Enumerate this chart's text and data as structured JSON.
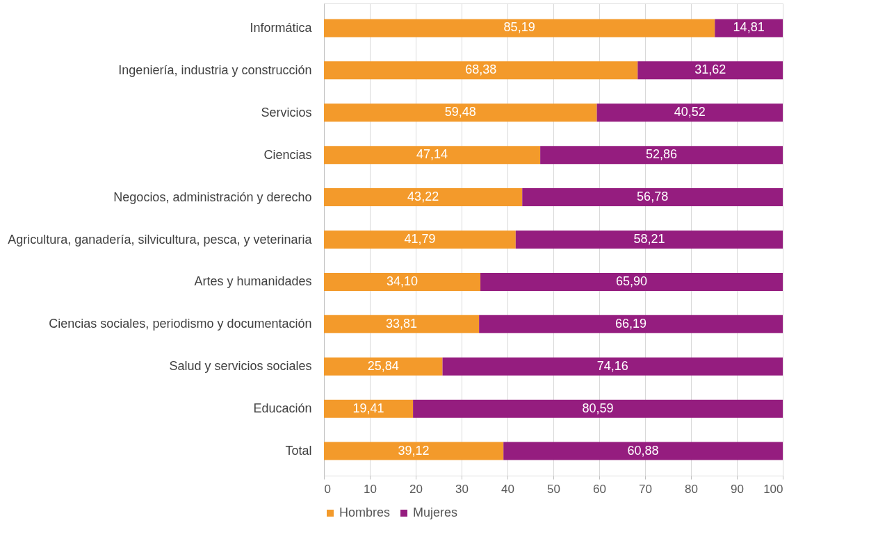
{
  "chart_data": {
    "type": "bar",
    "orientation": "horizontal",
    "stacked": true,
    "categories": [
      "Informática",
      "Ingeniería, industria y construcción",
      "Servicios",
      "Ciencias",
      "Negocios, administración y derecho",
      "Agricultura, ganadería,  silvicultura, pesca, y veterinaria",
      "Artes y humanidades",
      "Ciencias sociales, periodismo y documentación",
      "Salud y servicios sociales",
      "Educación",
      "Total"
    ],
    "series": [
      {
        "name": "Hombres",
        "color": "#f39a2b",
        "values": [
          85.19,
          68.38,
          59.48,
          47.14,
          43.22,
          41.79,
          34.1,
          33.81,
          25.84,
          19.41,
          39.12
        ],
        "value_labels": [
          "85,19",
          "68,38",
          "59,48",
          "47,14",
          "43,22",
          "41,79",
          "34,10",
          "33,81",
          "25,84",
          "19,41",
          "39,12"
        ]
      },
      {
        "name": "Mujeres",
        "color": "#951d7f",
        "values": [
          14.81,
          31.62,
          40.52,
          52.86,
          56.78,
          58.21,
          65.9,
          66.19,
          74.16,
          80.59,
          60.88
        ],
        "value_labels": [
          "14,81",
          "31,62",
          "40,52",
          "52,86",
          "56,78",
          "58,21",
          "65,90",
          "66,19",
          "74,16",
          "80,59",
          "60,88"
        ]
      }
    ],
    "xlim": [
      0,
      100
    ],
    "xticks": [
      0,
      10,
      20,
      30,
      40,
      50,
      60,
      70,
      80,
      90,
      100
    ],
    "grid": "x",
    "legend": "bottom"
  }
}
